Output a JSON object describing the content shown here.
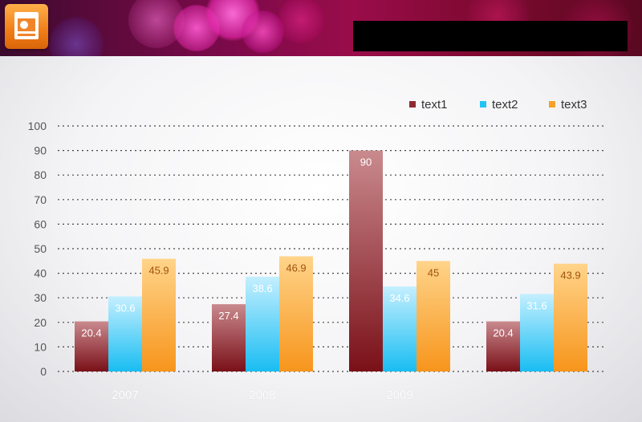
{
  "header": {
    "app_icon": "presentation-app-icon",
    "title_redacted": true,
    "colors": {
      "redaction": "#000000",
      "banner": "#7a0a4a"
    }
  },
  "chart_data": {
    "type": "bar",
    "categories": [
      "2007",
      "2008",
      "2009",
      ""
    ],
    "series": [
      {
        "name": "text1",
        "values": [
          20.4,
          27.4,
          90,
          20.4
        ],
        "color": "#8e2a33"
      },
      {
        "name": "text2",
        "values": [
          30.6,
          38.6,
          34.6,
          31.6
        ],
        "color": "#23c3f5"
      },
      {
        "name": "text3",
        "values": [
          45.9,
          46.9,
          45,
          43.9
        ],
        "color": "#f7a029"
      }
    ],
    "data_labels": [
      [
        "20.4",
        "27.4",
        "90",
        "20.4"
      ],
      [
        "30.6",
        "38.6",
        "34.6",
        "31.6"
      ],
      [
        "45.9",
        "46.9",
        "45",
        "43.9"
      ]
    ],
    "ylim": [
      0,
      100
    ],
    "yticks": [
      0,
      10,
      20,
      30,
      40,
      50,
      60,
      70,
      80,
      90,
      100
    ],
    "ytick_labels": [
      "0",
      "10",
      "20",
      "30",
      "40",
      "50",
      "60",
      "70",
      "80",
      "90",
      "100"
    ],
    "grid": true,
    "legend_position": "top-right",
    "title": "",
    "xlabel": "",
    "ylabel": ""
  }
}
